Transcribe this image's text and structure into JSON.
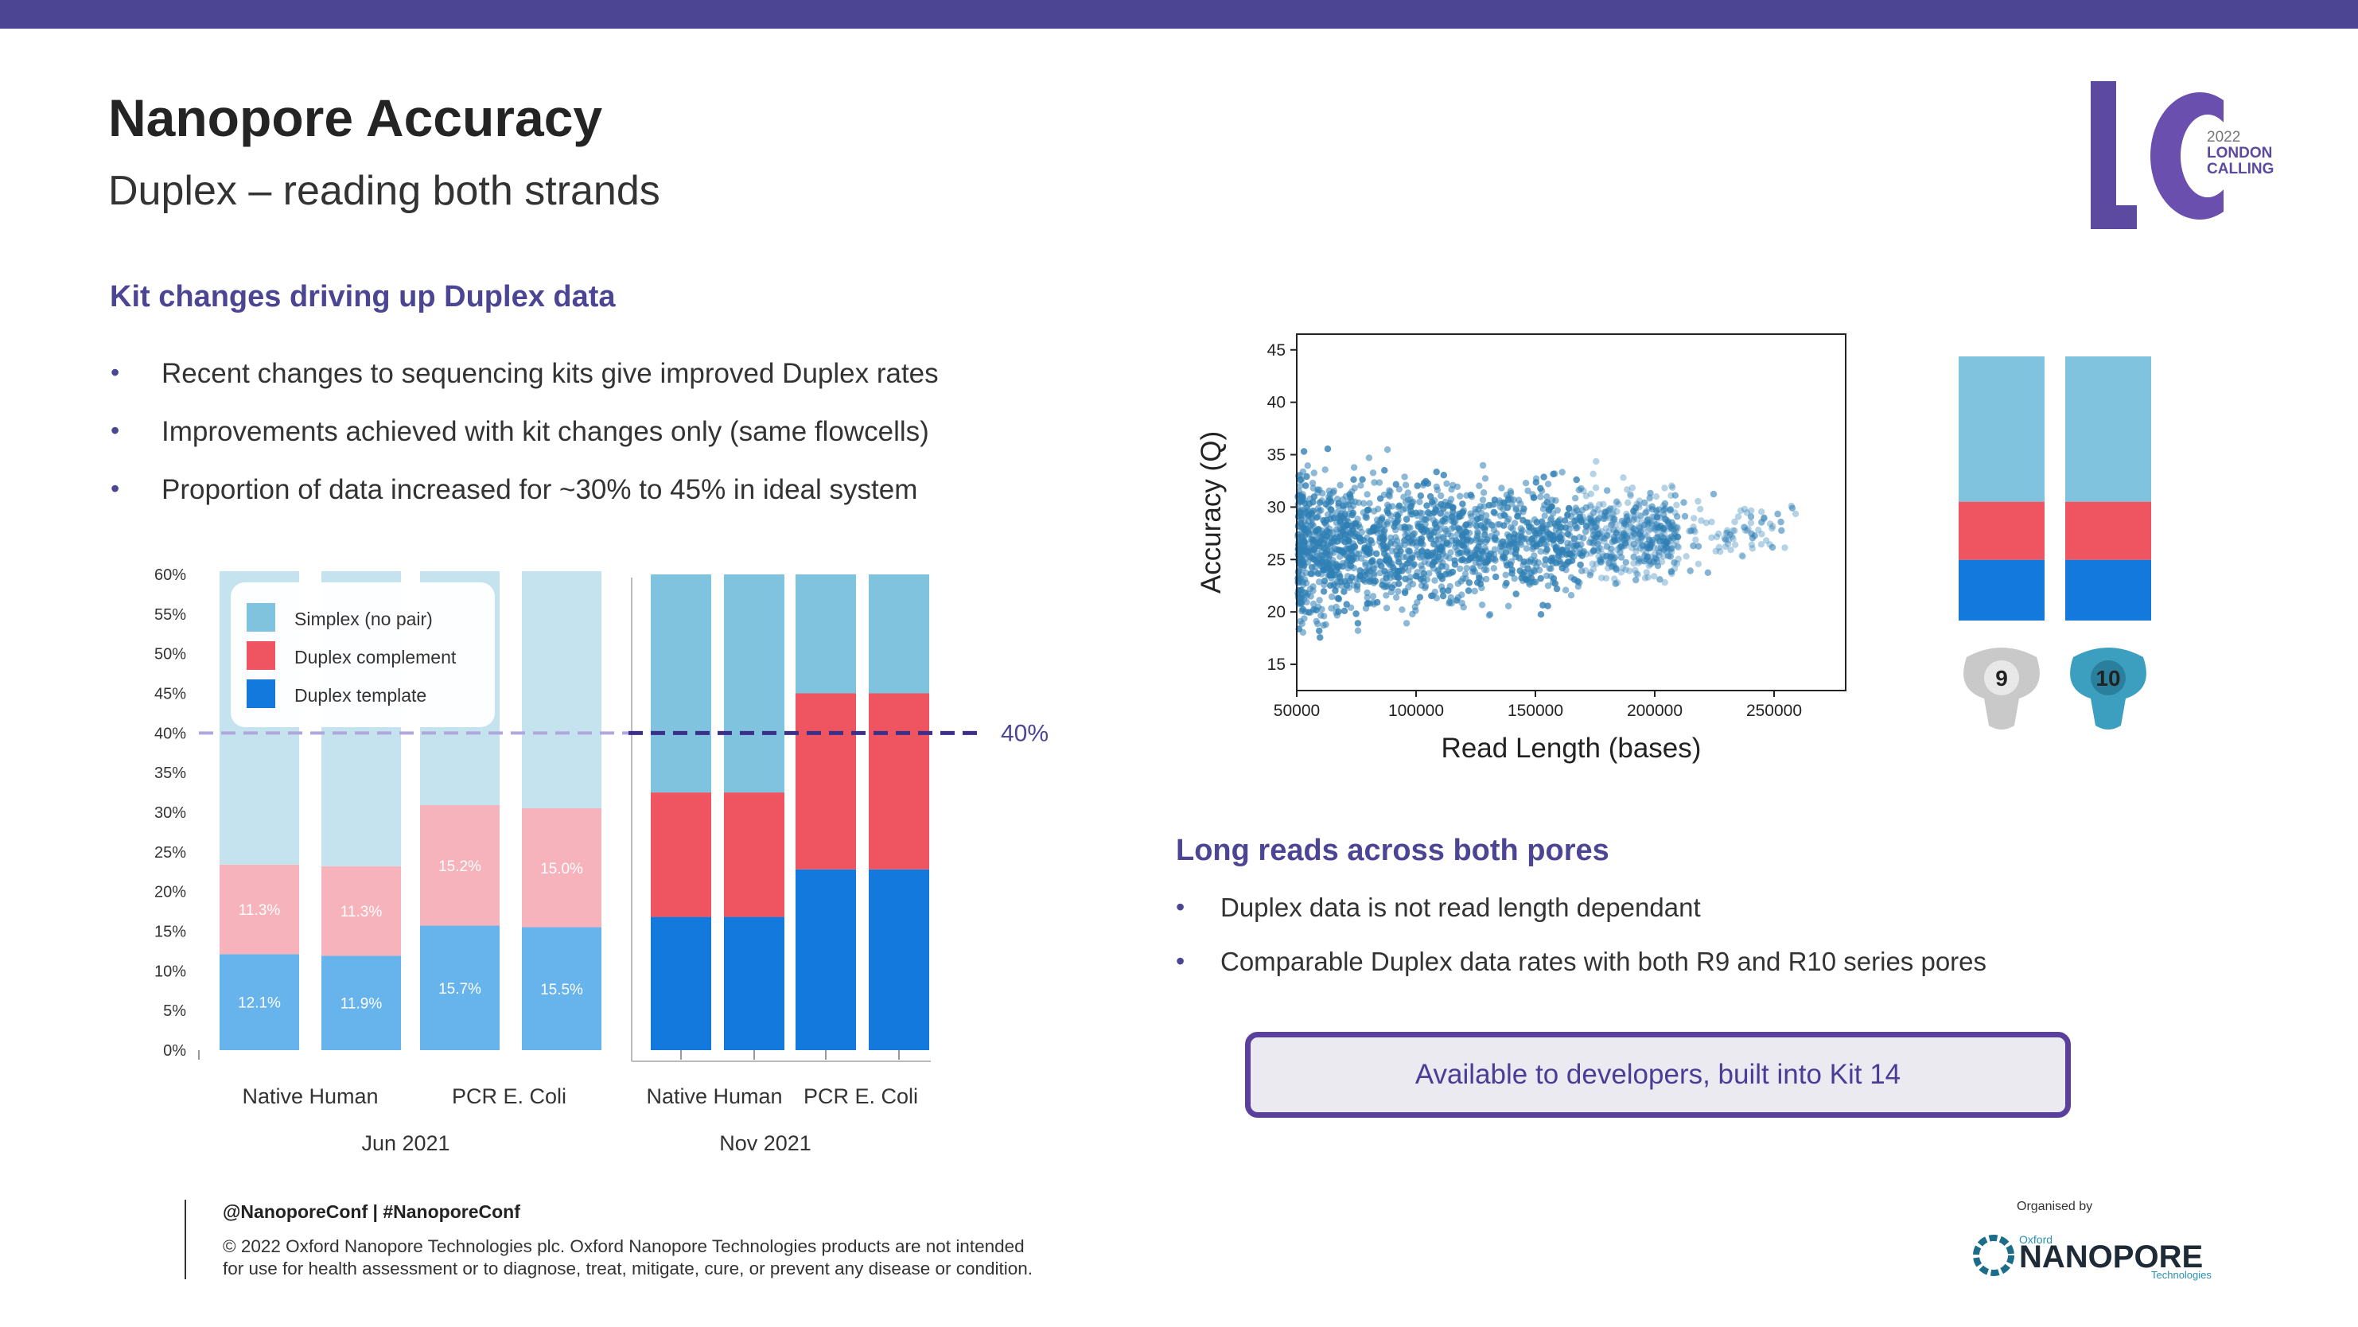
{
  "header": {
    "title": "Nanopore Accuracy",
    "subtitle": "Duplex – reading both strands"
  },
  "logo": {
    "year": "2022",
    "line1": "LONDON",
    "line2": "CALLING",
    "letters": "LC"
  },
  "kit_section": {
    "heading": "Kit changes driving up Duplex data",
    "bullets": [
      "Recent changes to sequencing kits give improved Duplex rates",
      "Improvements achieved with kit changes only (same flowcells)",
      "Proportion of data increased for ~30% to 45% in ideal system"
    ]
  },
  "long_reads_section": {
    "heading": "Long reads across both pores",
    "bullets": [
      "Duplex data is not read length dependant",
      "Comparable Duplex data rates with both R9 and R10 series pores"
    ]
  },
  "callout": "Available to developers, built into Kit 14",
  "footer": {
    "handle": "@NanoporeConf | #NanoporeConf",
    "copyright_line1": "© 2022 Oxford Nanopore Technologies plc. Oxford Nanopore Technologies products are not intended",
    "copyright_line2": "for use for health assessment or to diagnose, treat, mitigate, cure, or prevent any disease or condition.",
    "organised_by": "Organised by",
    "org_small": "Oxford",
    "org_name": "NANOPORE",
    "org_sub": "Technologies"
  },
  "pore_badges": [
    "9",
    "10"
  ],
  "colors": {
    "accent": "#4b4594",
    "simplex": "#7fc3df",
    "simplex_faded": "#c5e3ef",
    "complement": "#ef5461",
    "complement_faded": "#f6b3bb",
    "template": "#1379dd",
    "template_faded": "#67b4ec",
    "scatter": "#2f7fb5"
  },
  "chart_data": [
    {
      "type": "bar",
      "stacked": true,
      "yticks": [
        "60%",
        "55%",
        "50%",
        "45%",
        "40%",
        "35%",
        "30%",
        "25%",
        "20%",
        "15%",
        "10%",
        "5%",
        "0%"
      ],
      "ylim": [
        0,
        60
      ],
      "legend": [
        "Simplex (no pair)",
        "Duplex complement",
        "Duplex template"
      ],
      "legend_position": "top-left",
      "reference_line": {
        "value": 40,
        "label": "40%"
      },
      "groups": [
        {
          "name": "Jun 2021",
          "category_labels": [
            "Native Human",
            "PCR E. Coli"
          ],
          "bars": [
            {
              "template": 12.1,
              "complement": 11.3,
              "simplex": 37.0,
              "template_label": "12.1%",
              "complement_label": "11.3%"
            },
            {
              "template": 11.9,
              "complement": 11.3,
              "simplex": 37.2,
              "template_label": "11.9%",
              "complement_label": "11.3%"
            },
            {
              "template": 15.7,
              "complement": 15.2,
              "simplex": 29.5,
              "template_label": "15.7%",
              "complement_label": "15.2%"
            },
            {
              "template": 15.5,
              "complement": 15.0,
              "simplex": 29.9,
              "template_label": "15.5%",
              "complement_label": "15.0%"
            }
          ]
        },
        {
          "name": "Nov 2021",
          "category_labels": [
            "Native Human",
            "PCR E. Coli"
          ],
          "bars": [
            {
              "template": 16.8,
              "complement": 15.7,
              "simplex": 27.5
            },
            {
              "template": 16.8,
              "complement": 15.7,
              "simplex": 27.5
            },
            {
              "template": 22.8,
              "complement": 22.2,
              "simplex": 15.0
            },
            {
              "template": 22.8,
              "complement": 22.2,
              "simplex": 15.0
            }
          ]
        }
      ]
    },
    {
      "type": "scatter",
      "xlabel": "Read Length (bases)",
      "ylabel": "Accuracy (Q)",
      "xlim": [
        50000,
        280000
      ],
      "ylim": [
        12.5,
        46.5
      ],
      "xticks": [
        50000,
        100000,
        150000,
        200000,
        250000
      ],
      "yticks": [
        15,
        20,
        25,
        30,
        35,
        40,
        45
      ],
      "note": "dense cloud of reads between Q15 and Q35 up to ~200000 bases, sparse to ~250000"
    },
    {
      "type": "bar",
      "stacked": true,
      "categories": [
        "9",
        "10"
      ],
      "series": [
        {
          "values": [
            23,
            23
          ]
        },
        {
          "values": [
            22,
            22
          ]
        },
        {
          "values": [
            55,
            55
          ]
        }
      ]
    }
  ]
}
